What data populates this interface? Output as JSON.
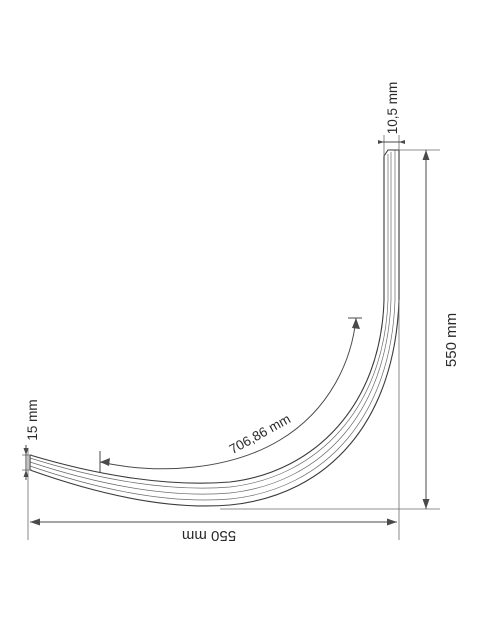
{
  "diagram": {
    "dimensions": {
      "width_label": "550 mm",
      "height_label": "550 mm",
      "arc_length_label": "706,86 mm",
      "profile_height_label": "15 mm",
      "profile_width_label": "10,5 mm"
    },
    "colors": {
      "line": "#4a4a4a",
      "rail": "#3a3a3a",
      "background": "#ffffff"
    }
  }
}
